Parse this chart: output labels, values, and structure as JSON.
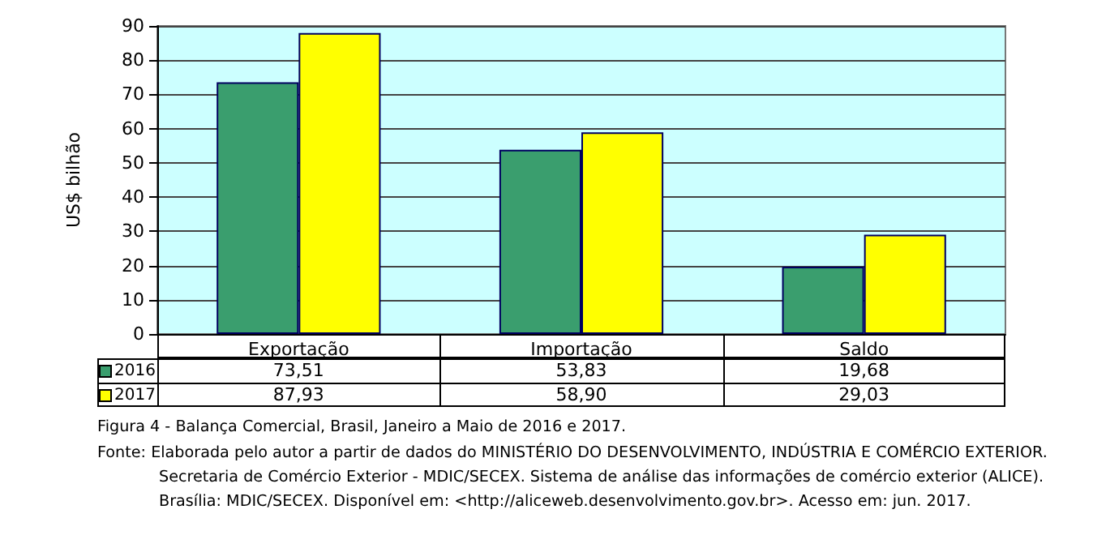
{
  "chart_data": {
    "type": "bar",
    "ylabel": "US$ bilhão",
    "categories": [
      "Exportação",
      "Importação",
      "Saldo"
    ],
    "series": [
      {
        "name": "2016",
        "color": "#3a9e6e",
        "values": [
          73.51,
          53.83,
          19.68
        ],
        "value_labels": [
          "73,51",
          "53,83",
          "19,68"
        ]
      },
      {
        "name": "2017",
        "color": "#ffff00",
        "values": [
          87.93,
          58.9,
          29.03
        ],
        "value_labels": [
          "87,93",
          "58,90",
          "29,03"
        ]
      }
    ],
    "ylim": [
      0,
      90
    ],
    "yticks": [
      0,
      10,
      20,
      30,
      40,
      50,
      60,
      70,
      80,
      90
    ],
    "grid": "y",
    "legend": "bottom",
    "annotations": [
      "Figura 4 - Balança Comercial, Brasil, Janeiro a Maio de 2016 e 2017.",
      "Fonte: Elaborada pelo autor a partir de dados do MINISTÉRIO DO DESENVOLVIMENTO, INDÚSTRIA E COMÉRCIO EXTERIOR. Secretaria de Comércio Exterior - MDIC/SECEX. Sistema de análise das informações de comércio exterior (ALICE). Brasília: MDIC/SECEX. Disponível em: <http://aliceweb.desenvolvimento.gov.br>. Acesso em: jun. 2017."
    ]
  }
}
